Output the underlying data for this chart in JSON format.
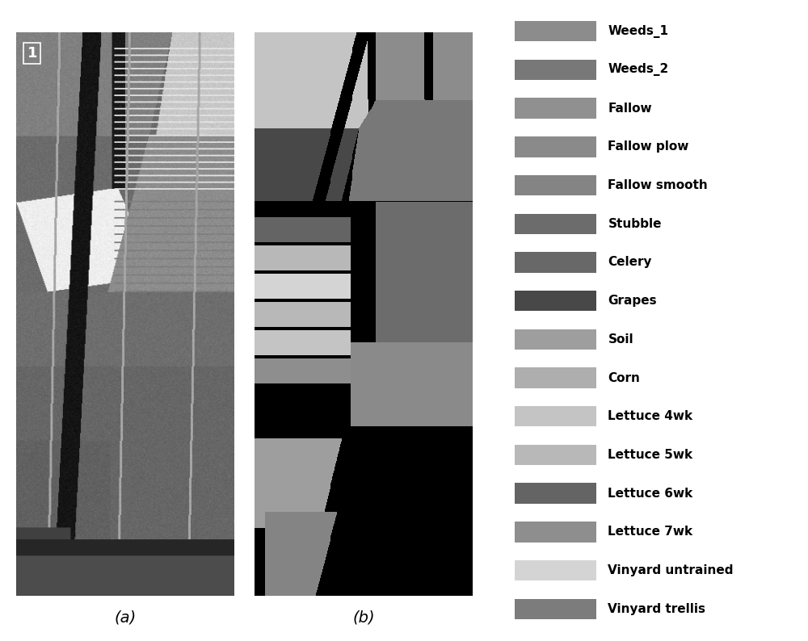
{
  "legend_labels": [
    "Weeds_1",
    "Weeds_2",
    "Fallow",
    "Fallow plow",
    "Fallow smooth",
    "Stubble",
    "Celery",
    "Grapes",
    "Soil",
    "Corn",
    "Lettuce 4wk",
    "Lettuce 5wk",
    "Lettuce 6wk",
    "Lettuce 7wk",
    "Vinyard untrained",
    "Vinyard trellis"
  ],
  "legend_colors": [
    "#8C8C8C",
    "#787878",
    "#909090",
    "#8A8A8A",
    "#848484",
    "#6C6C6C",
    "#686868",
    "#484848",
    "#9E9E9E",
    "#AEAEAE",
    "#C4C4C4",
    "#B8B8B8",
    "#646464",
    "#8E8E8E",
    "#D4D4D4",
    "#7C7C7C"
  ],
  "label_a": "(a)",
  "label_b": "(b)",
  "background_color": "#FFFFFF",
  "label_fontsize": 14,
  "legend_fontsize": 11,
  "number_label": "1"
}
